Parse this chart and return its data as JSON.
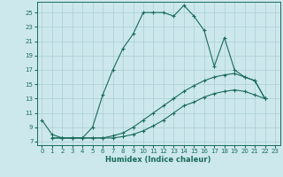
{
  "xlabel": "Humidex (Indice chaleur)",
  "xlim": [
    -0.5,
    23.5
  ],
  "ylim": [
    6.5,
    26.5
  ],
  "xticks": [
    0,
    1,
    2,
    3,
    4,
    5,
    6,
    7,
    8,
    9,
    10,
    11,
    12,
    13,
    14,
    15,
    16,
    17,
    18,
    19,
    20,
    21,
    22,
    23
  ],
  "yticks": [
    7,
    9,
    11,
    13,
    15,
    17,
    19,
    21,
    23,
    25
  ],
  "bg_color": "#cce8ec",
  "grid_color": "#aacdd4",
  "line_color": "#1a6b5a",
  "lines": [
    {
      "x": [
        0,
        1,
        2,
        3,
        4,
        5,
        6,
        7,
        8,
        9,
        10,
        11,
        12,
        13,
        14,
        15,
        16,
        17,
        18,
        19,
        20,
        21,
        22
      ],
      "y": [
        10,
        8,
        7.5,
        7.5,
        7.5,
        9,
        13.5,
        17,
        20,
        22,
        25,
        25,
        25,
        24.5,
        26,
        24.5,
        22.5,
        17.5,
        21.5,
        17,
        16,
        15.5,
        13
      ]
    },
    {
      "x": [
        1,
        2,
        3,
        4,
        5,
        6,
        7,
        8,
        9,
        10,
        11,
        12,
        13,
        14,
        15,
        16,
        17,
        18,
        19,
        20,
        21,
        22
      ],
      "y": [
        7.5,
        7.5,
        7.5,
        7.5,
        7.5,
        7.5,
        7.8,
        8.2,
        9.0,
        10.0,
        11.0,
        12.0,
        13.0,
        14.0,
        14.8,
        15.5,
        16.0,
        16.3,
        16.5,
        16.0,
        15.5,
        13
      ]
    },
    {
      "x": [
        1,
        2,
        3,
        4,
        5,
        6,
        7,
        8,
        9,
        10,
        11,
        12,
        13,
        14,
        15,
        16,
        17,
        18,
        19,
        20,
        21,
        22
      ],
      "y": [
        7.5,
        7.5,
        7.5,
        7.5,
        7.5,
        7.5,
        7.5,
        7.7,
        8.0,
        8.5,
        9.2,
        10.0,
        11.0,
        12.0,
        12.5,
        13.2,
        13.7,
        14.0,
        14.2,
        14.0,
        13.5,
        13
      ]
    }
  ]
}
